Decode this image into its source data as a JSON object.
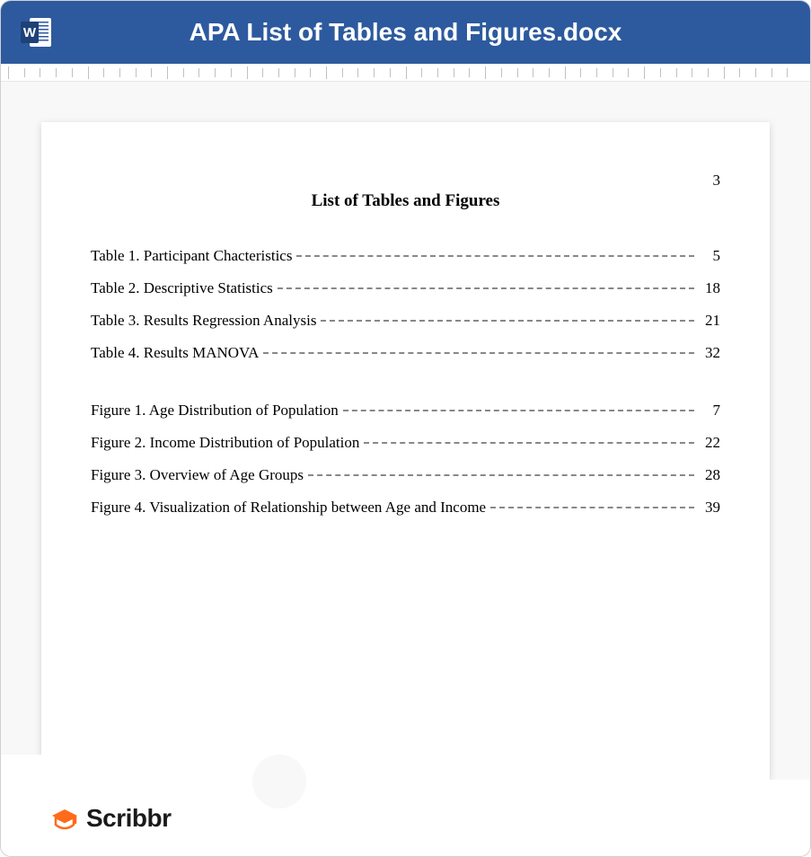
{
  "header": {
    "title": "APA List of Tables and Figures.docx",
    "title_bar_color": "#2d5a9e",
    "title_text_color": "#ffffff",
    "title_font_size": 28
  },
  "ruler": {
    "tick_count": 50,
    "tick_color": "#c0c0c0"
  },
  "document": {
    "page_number": "3",
    "title": "List of Tables and Figures",
    "background_color": "#f8f8f8",
    "page_color": "#ffffff",
    "font_family": "Times New Roman",
    "title_font_size": 19,
    "body_font_size": 17,
    "leader_color": "#888888",
    "tables": [
      {
        "label": "Table 1. Participant Chacteristics",
        "page": "5"
      },
      {
        "label": "Table 2. Descriptive Statistics",
        "page": "18"
      },
      {
        "label": "Table 3. Results Regression Analysis",
        "page": "21"
      },
      {
        "label": "Table 4. Results MANOVA",
        "page": "32"
      }
    ],
    "figures": [
      {
        "label": "Figure 1. Age Distribution of Population",
        "page": "7"
      },
      {
        "label": "Figure 2. Income Distribution of Population",
        "page": "22"
      },
      {
        "label": "Figure 3. Overview of Age Groups",
        "page": "28"
      },
      {
        "label": "Figure 4. Visualization of Relationship between Age and Income",
        "page": "39"
      }
    ]
  },
  "footer": {
    "brand_name": "Scribbr",
    "brand_color": "#1a1a1a",
    "brand_icon_color": "#ff6b1a"
  }
}
